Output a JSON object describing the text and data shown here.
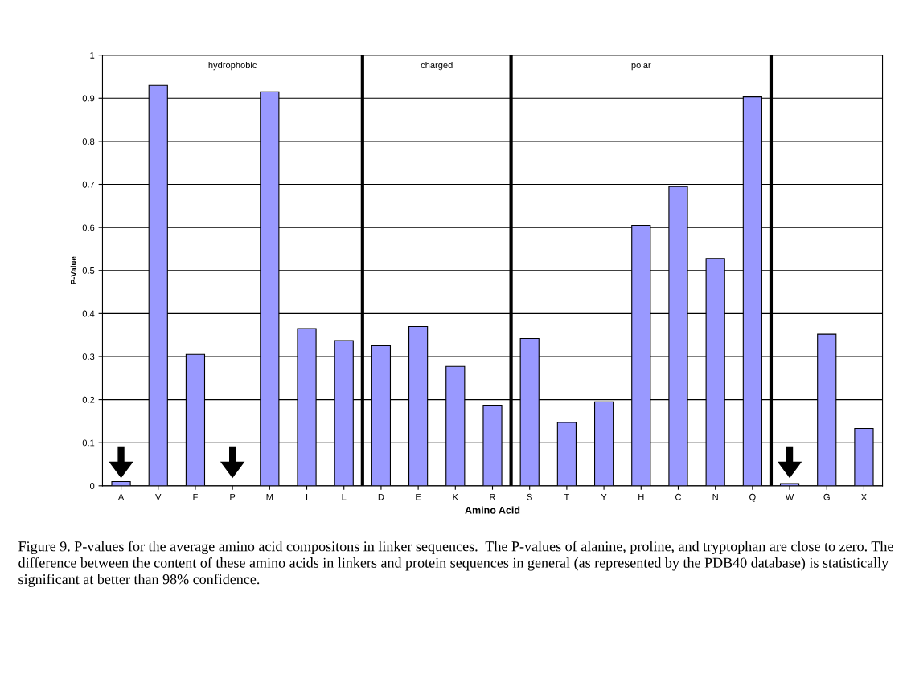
{
  "chart_data": {
    "type": "bar",
    "xlabel": "Amino Acid",
    "ylabel": "P-Value",
    "categories": [
      "A",
      "V",
      "F",
      "P",
      "M",
      "I",
      "L",
      "D",
      "E",
      "K",
      "R",
      "S",
      "T",
      "Y",
      "H",
      "C",
      "N",
      "Q",
      "W",
      "G",
      "X"
    ],
    "values": [
      0.01,
      0.93,
      0.305,
      0,
      0.915,
      0.365,
      0.337,
      0.325,
      0.37,
      0.277,
      0.187,
      0.342,
      0.147,
      0.195,
      0.605,
      0.695,
      0.528,
      0.903,
      0.005,
      0.352,
      0.133
    ],
    "color": "#9999ff",
    "ylim": [
      0,
      1
    ],
    "yticks": [
      0,
      0.1,
      0.2,
      0.3,
      0.4,
      0.5,
      0.6,
      0.7,
      0.8,
      0.9,
      1
    ],
    "grid": "y",
    "annotations": [
      "hydrophobic",
      "charged",
      "polar",
      "Figure 9. P-values for the average amino acid compositons in linker sequences.  The P-values of alanine, proline, and tryptophan are close to zero. The difference between the content of these amino acids in linkers and protein sequences in general (as represented by the PDB40 database) is statistically significant at better than 98% confidence."
    ]
  }
}
